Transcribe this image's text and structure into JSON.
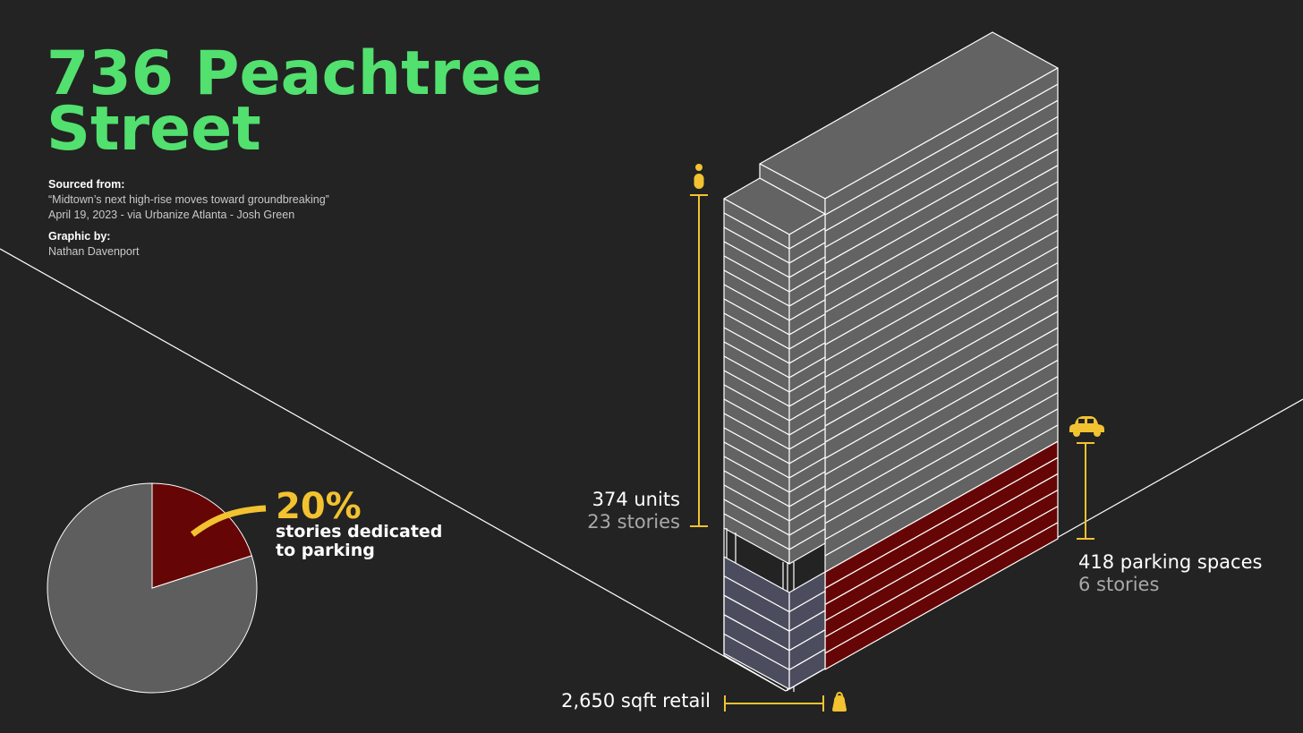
{
  "title": {
    "line1": "736 Peachtree",
    "line2": "Street"
  },
  "credits": {
    "sourced_label": "Sourced from:",
    "article": "“Midtown’s next high-rise moves toward groundbreaking”",
    "date_line": "April 19, 2023 - via Urbanize Atlanta - Josh Green",
    "graphic_label": "Graphic by:",
    "author": "Nathan Davenport"
  },
  "pie": {
    "value": "20%",
    "note_line1": "stories dedicated",
    "note_line2": "to parking",
    "fraction": 0.2,
    "colors": {
      "highlight": "#660505",
      "rest": "#5e5e5e",
      "pointer": "#f2c230"
    }
  },
  "labels": {
    "units_main": "374 units",
    "units_sub": "23 stories",
    "parking_main": "418 parking spaces",
    "parking_sub": "6 stories",
    "retail": "2,650 sqft retail"
  },
  "building": {
    "residential_stories": 23,
    "parking_stories": 6,
    "colors": {
      "residential": "#636363",
      "parking": "#660505",
      "lobby": "#4b4c5d",
      "accent": "#f2c230",
      "outline": "#ffffff"
    }
  },
  "icons": {
    "units": "person-icon",
    "parking": "car-icon",
    "retail": "shopping-bag-icon"
  }
}
